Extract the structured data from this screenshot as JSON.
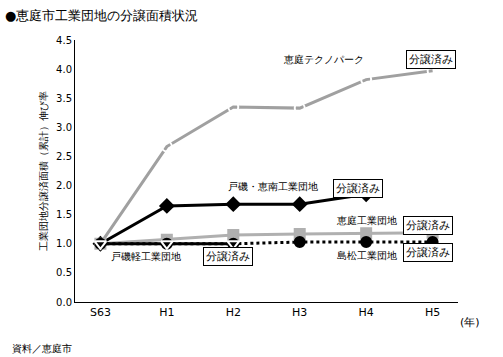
{
  "chart_data": {
    "type": "line",
    "title": "●恵庭市工業団地の分譲面積状況",
    "y_label": "工業団地分譲済面積（累計）伸び率",
    "x_label": "(年)",
    "source": "資料／恵庭市",
    "categories": [
      "S63",
      "H1",
      "H2",
      "H3",
      "H4",
      "H5"
    ],
    "series": [
      {
        "name": "恵庭テクノパーク",
        "color": "#a0a0a0",
        "marker": "circle-open",
        "line_style": "solid",
        "values": [
          1.0,
          2.67,
          3.35,
          3.33,
          3.82,
          3.97
        ],
        "annotation": "分譲済み"
      },
      {
        "name": "戸磯・恵南工業団地",
        "color": "#000000",
        "marker": "diamond",
        "line_style": "solid",
        "values": [
          1.0,
          1.65,
          1.68,
          1.68,
          1.85,
          null
        ],
        "annotation": "分譲済み"
      },
      {
        "name": "恵庭工業団地",
        "color": "#b0b0b0",
        "marker": "square",
        "line_style": "solid",
        "values": [
          1.0,
          1.07,
          1.15,
          1.17,
          1.18,
          1.19
        ],
        "annotation": "分譲済み"
      },
      {
        "name": "島松工業団地",
        "color": "#000000",
        "marker": "circle",
        "line_style": "dot",
        "values": [
          1.0,
          1.0,
          1.0,
          1.03,
          1.03,
          1.03
        ],
        "annotation": "分譲済み"
      },
      {
        "name": "戸磯軽工業団地",
        "color": "#000000",
        "marker": "triangle-down-open",
        "line_style": "solid",
        "values": [
          1.0,
          1.0,
          1.0,
          null,
          null,
          null
        ],
        "annotation": "分譲済み"
      }
    ],
    "ylim": [
      0,
      4.5
    ],
    "yticks": [
      {
        "value": 0,
        "label": "0.0"
      },
      0.5,
      {
        "value": 1,
        "label": "1.0"
      },
      1.5,
      {
        "value": 2,
        "label": "2.0"
      },
      2.5,
      {
        "value": 3,
        "label": "3.0"
      },
      3.5,
      {
        "value": 4,
        "label": "4.0"
      },
      4.5
    ],
    "grid": false
  }
}
